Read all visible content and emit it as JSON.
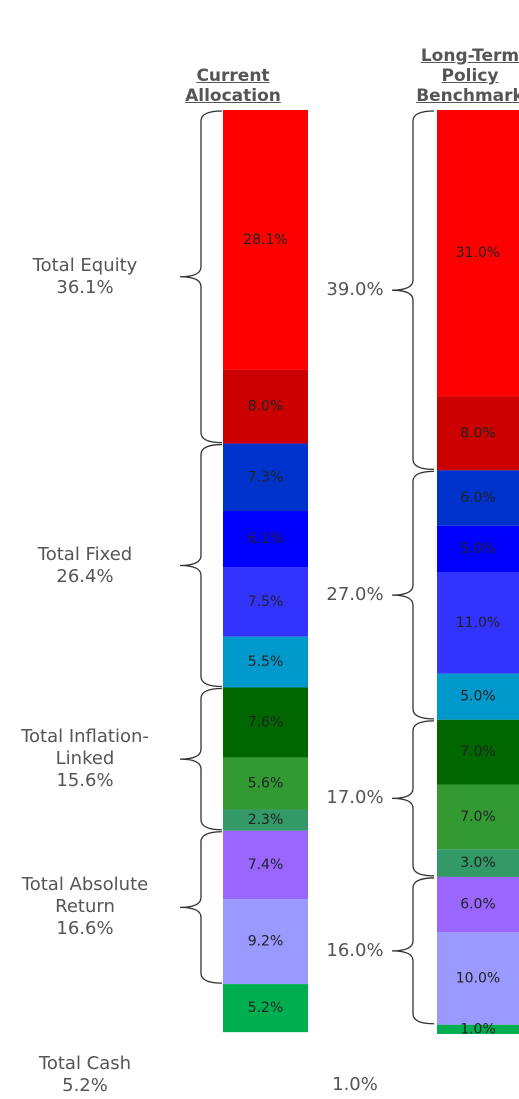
{
  "chart_data": {
    "type": "stacked-bar",
    "categories": [
      "Current Allocation",
      "Long-Term Policy Benchmark"
    ],
    "groups": [
      {
        "label": "Total Equity",
        "values": [
          36.1,
          39.0
        ],
        "value_labels": [
          "36.1%",
          "39.0%"
        ],
        "series": [
          {
            "color": "#ff0000",
            "values": [
              28.1,
              31.0
            ],
            "value_labels": [
              "28.1%",
              "31.0%"
            ]
          },
          {
            "color": "#cc0000",
            "values": [
              8.0,
              8.0
            ],
            "value_labels": [
              "8.0%",
              "8.0%"
            ]
          }
        ]
      },
      {
        "label": "Total Fixed",
        "values": [
          26.4,
          27.0
        ],
        "value_labels": [
          "26.4%",
          "27.0%"
        ],
        "series": [
          {
            "color": "#0033cc",
            "values": [
              7.3,
              6.0
            ],
            "value_labels": [
              "7.3%",
              "6.0%"
            ]
          },
          {
            "color": "#0000ff",
            "values": [
              6.1,
              5.0
            ],
            "value_labels": [
              "6.1%",
              "5.0%"
            ]
          },
          {
            "color": "#3333ff",
            "values": [
              7.5,
              11.0
            ],
            "value_labels": [
              "7.5%",
              "11.0%"
            ]
          },
          {
            "color": "#0099cc",
            "values": [
              5.5,
              5.0
            ],
            "value_labels": [
              "5.5%",
              "5.0%"
            ]
          }
        ]
      },
      {
        "label": "Total Inflation-Linked",
        "values": [
          15.6,
          17.0
        ],
        "value_labels": [
          "15.6%",
          "17.0%"
        ],
        "series": [
          {
            "color": "#006600",
            "values": [
              7.6,
              7.0
            ],
            "value_labels": [
              "7.6%",
              "7.0%"
            ]
          },
          {
            "color": "#339933",
            "values": [
              5.6,
              7.0
            ],
            "value_labels": [
              "5.6%",
              "7.0%"
            ]
          },
          {
            "color": "#339966",
            "values": [
              2.3,
              3.0
            ],
            "value_labels": [
              "2.3%",
              "3.0%"
            ]
          }
        ]
      },
      {
        "label": "Total Absolute Return",
        "values": [
          16.6,
          16.0
        ],
        "value_labels": [
          "16.6%",
          "16.0%"
        ],
        "series": [
          {
            "color": "#9966ff",
            "values": [
              7.4,
              6.0
            ],
            "value_labels": [
              "7.4%",
              "6.0%"
            ]
          },
          {
            "color": "#9999ff",
            "values": [
              9.2,
              10.0
            ],
            "value_labels": [
              "9.2%",
              "10.0%"
            ]
          }
        ]
      },
      {
        "label": "Total Cash",
        "values": [
          5.2,
          1.0
        ],
        "value_labels": [
          "5.2%",
          "1.0%"
        ],
        "series": [
          {
            "color": "#00b050",
            "values": [
              5.2,
              1.0
            ],
            "value_labels": [
              "5.2%",
              "1.0%"
            ]
          }
        ]
      }
    ]
  }
}
